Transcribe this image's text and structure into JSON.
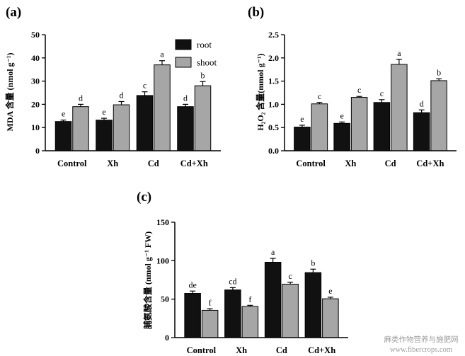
{
  "colors": {
    "root": "#111111",
    "shoot": "#a6a6a6",
    "axis": "#000000"
  },
  "watermark": {
    "line1": "麻类作物营养与施肥网",
    "line2": "www.fibercrops.com"
  },
  "chart_data": [
    {
      "type": "bar",
      "panel_label": "(a)",
      "ylabel": "MDA 含量 (nmol g⁻¹)",
      "ylim": [
        0,
        50
      ],
      "yticks": [
        "0",
        "10",
        "20",
        "30",
        "40",
        "50"
      ],
      "categories": [
        "Control",
        "Xh",
        "Cd",
        "Cd+Xh"
      ],
      "legend": {
        "position": "top-right"
      },
      "series": [
        {
          "name": "root",
          "values": [
            12.6,
            13.2,
            23.8,
            19.0
          ],
          "errors": [
            0.6,
            0.8,
            1.6,
            1.0
          ],
          "letters": [
            "e",
            "e",
            "c",
            "d"
          ]
        },
        {
          "name": "shoot",
          "values": [
            19.0,
            19.8,
            37.0,
            28.0
          ],
          "errors": [
            1.0,
            1.4,
            1.8,
            1.8
          ],
          "letters": [
            "d",
            "d",
            "a",
            "b"
          ]
        }
      ]
    },
    {
      "type": "bar",
      "panel_label": "(b)",
      "ylabel": "H₂O₂ 含量(mmol g⁻¹)",
      "ylim": [
        0,
        2.5
      ],
      "yticks": [
        "0.0",
        "0.5",
        "1.0",
        "1.5",
        "2.0",
        "2.5"
      ],
      "categories": [
        "Control",
        "Xh",
        "Cd",
        "Cd+Xh"
      ],
      "series": [
        {
          "name": "root",
          "values": [
            0.51,
            0.59,
            1.04,
            0.82
          ],
          "errors": [
            0.04,
            0.03,
            0.06,
            0.06
          ],
          "letters": [
            "e",
            "e",
            "c",
            "d"
          ]
        },
        {
          "name": "shoot",
          "values": [
            1.01,
            1.15,
            1.86,
            1.51
          ],
          "errors": [
            0.03,
            0.02,
            0.11,
            0.04
          ],
          "letters": [
            "c",
            "c",
            "a",
            "b"
          ]
        }
      ]
    },
    {
      "type": "bar",
      "panel_label": "(c)",
      "ylabel": "脯氨酸含量 (nmol g⁻¹ FW)",
      "ylim": [
        0,
        150
      ],
      "yticks": [
        "0",
        "50",
        "100",
        "150"
      ],
      "categories": [
        "Control",
        "Xh",
        "Cd",
        "Cd+Xh"
      ],
      "series": [
        {
          "name": "root",
          "values": [
            57.5,
            62.0,
            98.0,
            84.5
          ],
          "errors": [
            3.0,
            3.0,
            5.0,
            4.5
          ],
          "letters": [
            "de",
            "cd",
            "a",
            "b"
          ]
        },
        {
          "name": "shoot",
          "values": [
            35.5,
            40.5,
            69.5,
            50.5
          ],
          "errors": [
            2.0,
            1.5,
            2.5,
            2.0
          ],
          "letters": [
            "f",
            "f",
            "c",
            "e"
          ]
        }
      ]
    }
  ]
}
